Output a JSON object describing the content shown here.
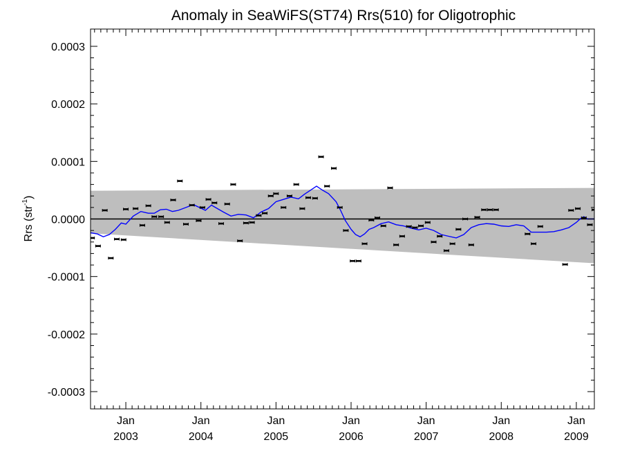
{
  "chart_data": {
    "type": "line",
    "title": "Anomaly in SeaWiFS(ST74) Rrs(510) for Oligotrophic",
    "ylabel_main": "Rrs (str",
    "ylabel_sup": "-1",
    "ylabel_close": ")",
    "xlabel": "",
    "x_unit": "years",
    "xlim": [
      2002.53,
      2009.24
    ],
    "ylim": [
      -0.00033,
      0.00033
    ],
    "grid": false,
    "y_ticks": [
      -0.0003,
      -0.0002,
      -0.0001,
      0.0,
      0.0001,
      0.0002,
      0.0003
    ],
    "y_tick_labels": [
      "-0.0003",
      "-0.0002",
      "-0.0001",
      "0.0000",
      "0.0001",
      "0.0002",
      "0.0003"
    ],
    "x_ticks": [
      {
        "x": 2003.0,
        "month": "Jan",
        "year": "2003"
      },
      {
        "x": 2004.0,
        "month": "Jan",
        "year": "2004"
      },
      {
        "x": 2005.0,
        "month": "Jan",
        "year": "2005"
      },
      {
        "x": 2006.0,
        "month": "Jan",
        "year": "2006"
      },
      {
        "x": 2007.0,
        "month": "Jan",
        "year": "2007"
      },
      {
        "x": 2008.0,
        "month": "Jan",
        "year": "2008"
      },
      {
        "x": 2009.0,
        "month": "Jan",
        "year": "2009"
      }
    ],
    "confidence_band": {
      "color": "#bebebe",
      "x": [
        2002.53,
        2009.24
      ],
      "upper": [
        4.9e-05,
        5.4e-05
      ],
      "lower": [
        -2.5e-05,
        -7.7e-05
      ]
    },
    "zero_line": {
      "y": 0.0,
      "color": "#000000"
    },
    "series": [
      {
        "kind": "points",
        "color": "#000000",
        "x": [
          2002.55,
          2002.63,
          2002.72,
          2002.8,
          2002.88,
          2002.97,
          2003.0,
          2003.13,
          2003.22,
          2003.3,
          2003.38,
          2003.47,
          2003.55,
          2003.63,
          2003.72,
          2003.8,
          2003.88,
          2003.97,
          2004.02,
          2004.1,
          2004.18,
          2004.27,
          2004.35,
          2004.43,
          2004.52,
          2004.6,
          2004.68,
          2004.77,
          2004.85,
          2004.93,
          2005.0,
          2005.1,
          2005.18,
          2005.27,
          2005.35,
          2005.43,
          2005.52,
          2005.6,
          2005.68,
          2005.77,
          2005.85,
          2005.93,
          2006.02,
          2006.1,
          2006.18,
          2006.27,
          2006.35,
          2006.43,
          2006.52,
          2006.6,
          2006.68,
          2006.77,
          2006.85,
          2006.93,
          2007.02,
          2007.1,
          2007.18,
          2007.27,
          2007.35,
          2007.43,
          2007.52,
          2007.6,
          2007.68,
          2007.77,
          2007.85,
          2007.93,
          2008.35,
          2008.43,
          2008.52,
          2008.85,
          2008.93,
          2009.02,
          2009.1,
          2009.18,
          2009.24
        ],
        "y": [
          -3.3e-05,
          -4.7e-05,
          1.5e-05,
          -6.8e-05,
          -3.5e-05,
          -3.6e-05,
          1.7e-05,
          1.8e-05,
          -1.1e-05,
          2.3e-05,
          4e-06,
          4e-06,
          -6e-06,
          3.3e-05,
          6.6e-05,
          -9e-06,
          2.4e-05,
          -3e-06,
          2e-05,
          3.4e-05,
          2.8e-05,
          -8e-06,
          2.6e-05,
          6e-05,
          -3.8e-05,
          -7e-06,
          -6e-06,
          6e-06,
          1e-05,
          4e-05,
          4.4e-05,
          2e-05,
          4e-05,
          6e-05,
          1.8e-05,
          3.7e-05,
          3.6e-05,
          0.000108,
          5.7e-05,
          8.8e-05,
          2e-05,
          -2e-05,
          -7.3e-05,
          -7.3e-05,
          -4.3e-05,
          -2e-06,
          2e-06,
          -1.2e-05,
          5.4e-05,
          -4.5e-05,
          -3e-05,
          -1.3e-05,
          -1.5e-05,
          -1.2e-05,
          -6e-06,
          -4e-05,
          -3e-05,
          -5.5e-05,
          -4.3e-05,
          -1.8e-05,
          0.0,
          -4.5e-05,
          3e-06,
          1.6e-05,
          1.6e-05,
          1.6e-05,
          -2.6e-05,
          -4.3e-05,
          -1.3e-05,
          -7.9e-05,
          1.5e-05,
          1.8e-05,
          2e-06,
          -1e-05,
          1.6e-05
        ]
      },
      {
        "kind": "line",
        "color": "#0000ff",
        "x": [
          2002.53,
          2002.62,
          2002.7,
          2002.78,
          2002.86,
          2002.94,
          2003.0,
          2003.1,
          2003.2,
          2003.3,
          2003.38,
          2003.46,
          2003.54,
          2003.62,
          2003.7,
          2003.8,
          2003.9,
          2003.98,
          2004.06,
          2004.14,
          2004.22,
          2004.3,
          2004.4,
          2004.5,
          2004.6,
          2004.7,
          2004.8,
          2004.9,
          2005.0,
          2005.1,
          2005.2,
          2005.3,
          2005.38,
          2005.46,
          2005.54,
          2005.62,
          2005.7,
          2005.8,
          2005.86,
          2005.92,
          2006.0,
          2006.06,
          2006.12,
          2006.18,
          2006.24,
          2006.3,
          2006.4,
          2006.5,
          2006.6,
          2006.7,
          2006.8,
          2006.9,
          2007.0,
          2007.1,
          2007.2,
          2007.3,
          2007.4,
          2007.5,
          2007.6,
          2007.7,
          2007.8,
          2007.9,
          2008.0,
          2008.1,
          2008.2,
          2008.3,
          2008.4,
          2008.5,
          2008.6,
          2008.7,
          2008.8,
          2008.9,
          2009.0,
          2009.05,
          2009.1,
          2009.15,
          2009.24
        ],
        "y": [
          -2.4e-05,
          -2.6e-05,
          -3.1e-05,
          -2.7e-05,
          -1.8e-05,
          -7e-06,
          -9e-06,
          5e-06,
          1.3e-05,
          1e-05,
          1e-05,
          1.6e-05,
          1.7e-05,
          1.3e-05,
          1.5e-05,
          2e-05,
          2.5e-05,
          2e-05,
          1.5e-05,
          2.4e-05,
          1.8e-05,
          1.2e-05,
          5e-06,
          8e-06,
          7e-06,
          2e-06,
          1.2e-05,
          1.8e-05,
          3e-05,
          3.4e-05,
          3.8e-05,
          3.5e-05,
          4.3e-05,
          5e-05,
          5.7e-05,
          5e-05,
          4.4e-05,
          3e-05,
          1.5e-05,
          -2e-06,
          -1.8e-05,
          -2.7e-05,
          -3.1e-05,
          -2.6e-05,
          -1.8e-05,
          -1.5e-05,
          -8e-06,
          -5e-06,
          -1e-05,
          -1.2e-05,
          -1.6e-05,
          -1.9e-05,
          -1.6e-05,
          -2e-05,
          -2.7e-05,
          -3e-05,
          -3.3e-05,
          -2.7e-05,
          -1.5e-05,
          -1e-05,
          -8e-06,
          -9e-06,
          -1.2e-05,
          -1.3e-05,
          -1e-05,
          -1.2e-05,
          -2.3e-05,
          -2.3e-05,
          -2.3e-05,
          -2.2e-05,
          -1.9e-05,
          -1.5e-05,
          -6e-06,
          0.0,
          4e-06,
          0.0,
          0.0
        ]
      }
    ]
  }
}
